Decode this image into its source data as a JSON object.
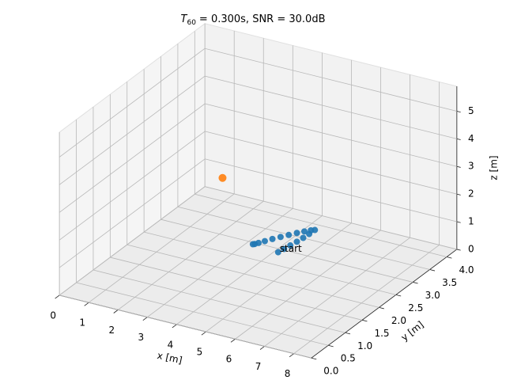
{
  "chart_data": {
    "type": "scatter3d",
    "title": {
      "symbol": "T",
      "subscript": "60",
      "text": "= 0.300s, SNR = 30.0dB"
    },
    "xlabel": "x [m]",
    "ylabel": "y [m]",
    "zlabel": "z [m]",
    "xlim": [
      0,
      8.6
    ],
    "ylim": [
      0,
      4.3
    ],
    "zlim": [
      0,
      5.9
    ],
    "xticks": [
      0,
      1,
      2,
      3,
      4,
      5,
      6,
      7,
      8
    ],
    "yticks": [
      {
        "value": 0,
        "label": "0.0"
      },
      0.5,
      {
        "value": 1,
        "label": "1.0"
      },
      1.5,
      {
        "value": 2,
        "label": "2.0"
      },
      2.5,
      {
        "value": 3,
        "label": "3.0"
      },
      3.5,
      {
        "value": 4,
        "label": "4.0"
      }
    ],
    "zticks": [
      0,
      1,
      2,
      3,
      4,
      5
    ],
    "grid": true,
    "series": [
      {
        "color": "#1f77b4",
        "x": [
          5.26,
          5.3,
          5.34,
          5.38,
          5.41,
          5.43,
          5.44,
          5.35,
          5.22,
          5.08,
          4.94,
          4.8,
          4.66,
          4.54,
          4.44,
          4.38,
          4.34
        ],
        "y": [
          1.91,
          2.05,
          2.2,
          2.36,
          2.52,
          2.68,
          2.84,
          2.8,
          2.72,
          2.62,
          2.5,
          2.38,
          2.26,
          2.14,
          2.04,
          1.98,
          1.96
        ],
        "z": [
          1.2,
          1.2,
          1.2,
          1.2,
          1.2,
          1.2,
          1.2,
          1.2,
          1.2,
          1.2,
          1.2,
          1.2,
          1.2,
          1.2,
          1.2,
          1.2,
          1.2
        ]
      },
      {
        "color": "#ff7f0e",
        "x": [
          2.9
        ],
        "y": [
          2.31
        ],
        "z": [
          2.9
        ]
      }
    ],
    "annotations": [
      {
        "text": "start",
        "x": 5.26,
        "y": 1.91,
        "z": 1.2
      }
    ]
  }
}
